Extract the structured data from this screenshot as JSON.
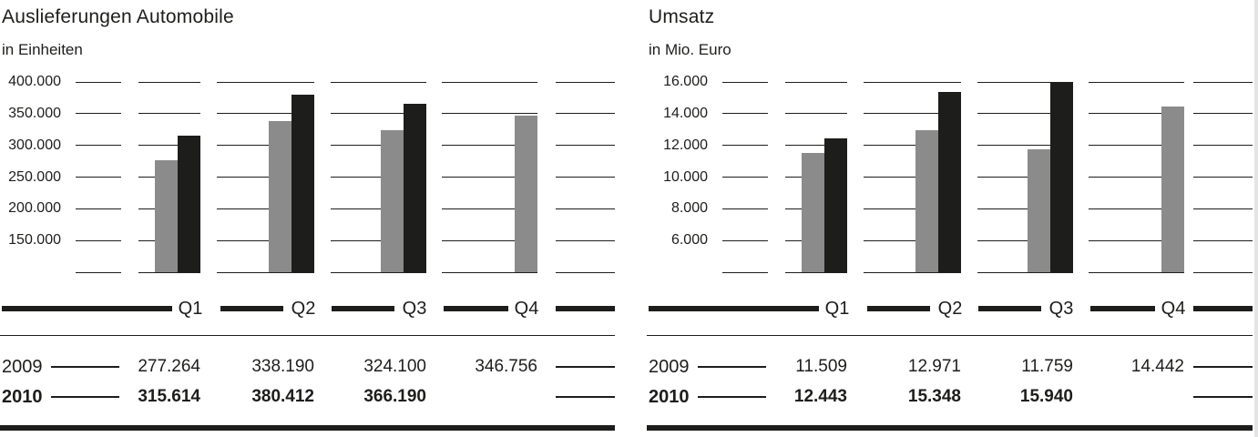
{
  "page": {
    "background": "#ffffff"
  },
  "colors": {
    "text": "#1d1d1b",
    "line": "#1d1d1b",
    "bar_2009": "#8b8b8b",
    "bar_2010": "#1d1d1b"
  },
  "charts": [
    {
      "id": "deliveries",
      "title": "Auslieferungen Automobile",
      "unit_label": "in Einheiten",
      "y_tick_labels": [
        "400.000",
        "350.000",
        "300.000",
        "250.000",
        "200.000",
        "150.000"
      ],
      "quarter_labels": [
        "Q1",
        "Q2",
        "Q3",
        "Q4"
      ],
      "table": [
        {
          "year": "2009",
          "bold": false,
          "values": [
            "277.264",
            "338.190",
            "324.100",
            "346.756"
          ]
        },
        {
          "year": "2010",
          "bold": true,
          "values": [
            "315.614",
            "380.412",
            "366.190",
            ""
          ]
        }
      ],
      "chart_data": {
        "type": "bar",
        "title": "Auslieferungen Automobile",
        "ylabel": "in Einheiten",
        "categories": [
          "Q1",
          "Q2",
          "Q3",
          "Q4"
        ],
        "series": [
          {
            "name": "2009",
            "color": "#8b8b8b",
            "values": [
              277264,
              338190,
              324100,
              346756
            ]
          },
          {
            "name": "2010",
            "color": "#1d1d1b",
            "values": [
              315614,
              380412,
              366190,
              null
            ]
          }
        ],
        "ylim": [
          100000,
          400000
        ],
        "ytick_step": 50000,
        "baseline_value": 100000,
        "grid": true,
        "legend_position": "none"
      }
    },
    {
      "id": "revenue",
      "title": "Umsatz",
      "unit_label": "in Mio. Euro",
      "y_tick_labels": [
        "16.000",
        "14.000",
        "12.000",
        "10.000",
        "8.000",
        "6.000"
      ],
      "quarter_labels": [
        "Q1",
        "Q2",
        "Q3",
        "Q4"
      ],
      "table": [
        {
          "year": "2009",
          "bold": false,
          "values": [
            "11.509",
            "12.971",
            "11.759",
            "14.442"
          ]
        },
        {
          "year": "2010",
          "bold": true,
          "values": [
            "12.443",
            "15.348",
            "15.940",
            ""
          ]
        }
      ],
      "chart_data": {
        "type": "bar",
        "title": "Umsatz",
        "ylabel": "in Mio. Euro",
        "categories": [
          "Q1",
          "Q2",
          "Q3",
          "Q4"
        ],
        "series": [
          {
            "name": "2009",
            "color": "#8b8b8b",
            "values": [
              11509,
              12971,
              11759,
              14442
            ]
          },
          {
            "name": "2010",
            "color": "#1d1d1b",
            "values": [
              12443,
              15348,
              15940,
              null
            ]
          }
        ],
        "ylim": [
          4000,
          16000
        ],
        "ytick_step": 2000,
        "baseline_value": 4000,
        "grid": true,
        "legend_position": "none"
      }
    }
  ]
}
